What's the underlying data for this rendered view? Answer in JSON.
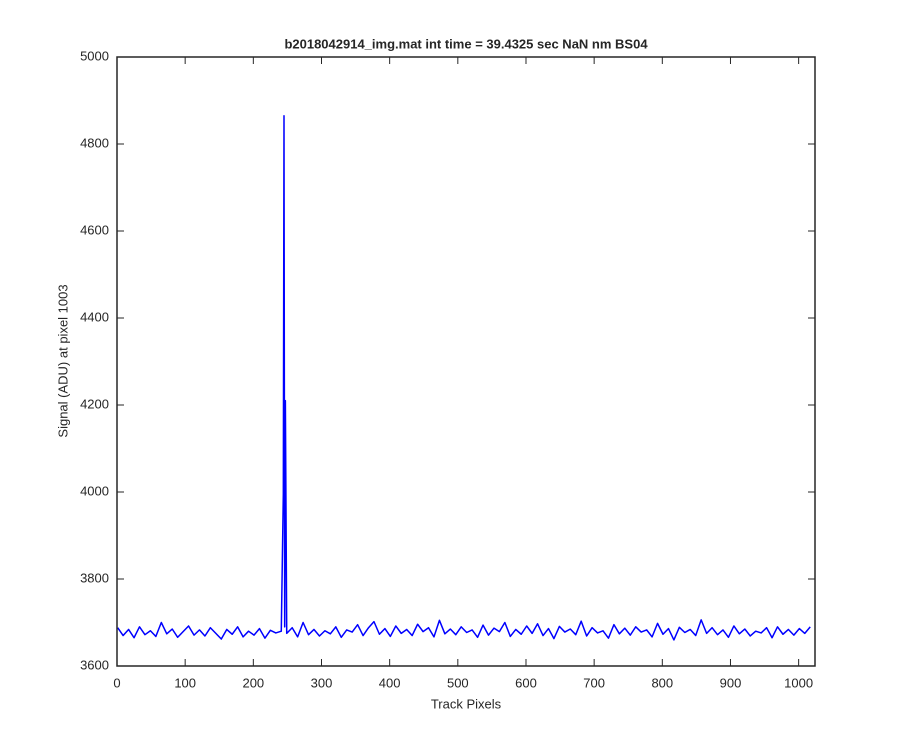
{
  "chart_data": {
    "type": "line",
    "title": "b2018042914_img.mat int time = 39.4325 sec  NaN nm BS04",
    "x_label": "Track Pixels",
    "y_label": "Signal (ADU) at pixel 1003",
    "xlim": [
      0,
      1024
    ],
    "ylim": [
      3600,
      5000
    ],
    "xticks": [
      0,
      100,
      200,
      300,
      400,
      500,
      600,
      700,
      800,
      900,
      1000
    ],
    "yticks": [
      3600,
      3800,
      4000,
      4200,
      4400,
      4600,
      4800,
      5000
    ],
    "grid": false,
    "series": [
      {
        "name": "signal",
        "color": "#0000ff",
        "x": [
          1,
          9,
          17,
          25,
          33,
          41,
          49,
          57,
          65,
          73,
          81,
          89,
          97,
          105,
          113,
          121,
          129,
          137,
          145,
          153,
          161,
          169,
          177,
          185,
          193,
          201,
          209,
          217,
          225,
          233,
          241,
          244,
          245,
          246,
          247,
          249,
          257,
          265,
          273,
          281,
          289,
          297,
          305,
          313,
          321,
          329,
          337,
          345,
          353,
          361,
          369,
          377,
          385,
          393,
          401,
          409,
          417,
          425,
          433,
          441,
          449,
          457,
          465,
          473,
          481,
          489,
          497,
          505,
          513,
          521,
          529,
          537,
          545,
          553,
          561,
          569,
          577,
          585,
          593,
          601,
          609,
          617,
          625,
          633,
          641,
          649,
          657,
          665,
          673,
          681,
          689,
          697,
          705,
          713,
          721,
          729,
          737,
          745,
          753,
          761,
          769,
          777,
          785,
          793,
          801,
          809,
          817,
          825,
          833,
          841,
          849,
          857,
          865,
          873,
          881,
          889,
          897,
          905,
          913,
          921,
          929,
          937,
          945,
          953,
          961,
          969,
          977,
          985,
          993,
          1001,
          1009,
          1017
        ],
        "values": [
          3688,
          3670,
          3684,
          3665,
          3690,
          3672,
          3681,
          3668,
          3700,
          3674,
          3685,
          3666,
          3679,
          3692,
          3671,
          3683,
          3669,
          3688,
          3675,
          3662,
          3684,
          3673,
          3690,
          3667,
          3680,
          3671,
          3686,
          3664,
          3682,
          3676,
          3680,
          3995,
          4865,
          3690,
          4210,
          3675,
          3688,
          3667,
          3700,
          3672,
          3684,
          3669,
          3681,
          3674,
          3690,
          3666,
          3683,
          3678,
          3695,
          3670,
          3688,
          3702,
          3673,
          3686,
          3668,
          3692,
          3675,
          3684,
          3670,
          3696,
          3679,
          3688,
          3667,
          3705,
          3674,
          3685,
          3672,
          3690,
          3677,
          3683,
          3666,
          3694,
          3671,
          3687,
          3679,
          3700,
          3668,
          3684,
          3673,
          3692,
          3675,
          3697,
          3670,
          3686,
          3663,
          3691,
          3678,
          3685,
          3672,
          3703,
          3669,
          3688,
          3676,
          3681,
          3664,
          3695,
          3674,
          3687,
          3671,
          3690,
          3678,
          3683,
          3667,
          3698,
          3673,
          3686,
          3660,
          3689,
          3677,
          3684,
          3670,
          3706,
          3675,
          3688,
          3672,
          3683,
          3666,
          3692,
          3674,
          3685,
          3669,
          3680,
          3676,
          3688,
          3665,
          3690,
          3673,
          3684,
          3671,
          3686,
          3675,
          3690
        ]
      }
    ]
  }
}
